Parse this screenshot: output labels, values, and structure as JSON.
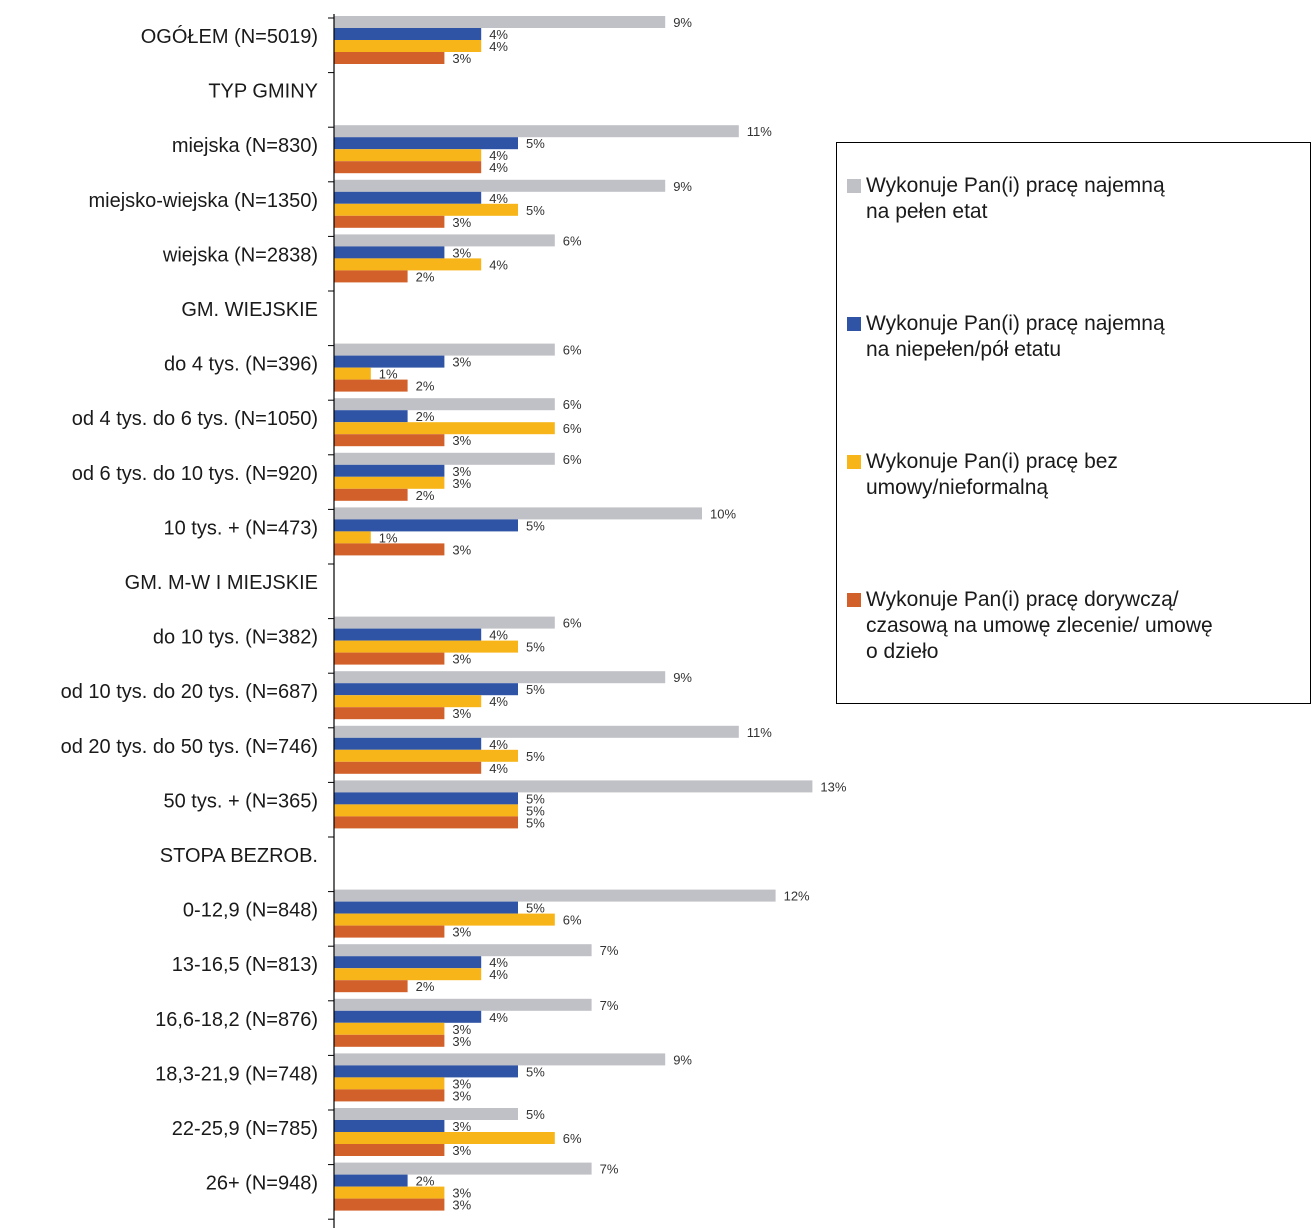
{
  "chart_data": {
    "type": "bar",
    "orientation": "horizontal",
    "categories": [
      "OGÓŁEM  (N=5019)",
      "TYP GMINY",
      "miejska (N=830)",
      "miejsko-wiejska (N=1350)",
      "wiejska (N=2838)",
      "GM. WIEJSKIE",
      "do 4 tys. (N=396)",
      "od 4 tys. do 6 tys. (N=1050)",
      "od 6 tys. do 10 tys. (N=920)",
      "10 tys. + (N=473)",
      "GM. M-W I MIEJSKIE",
      "do 10 tys. (N=382)",
      "od 10 tys. do 20 tys. (N=687)",
      "od 20 tys. do 50 tys. (N=746)",
      "50 tys. + (N=365)",
      "STOPA BEZROB.",
      "0-12,9 (N=848)",
      "13-16,5 (N=813)",
      "16,6-18,2 (N=876)",
      "18,3-21,9 (N=748)",
      "22-25,9 (N=785)",
      "26+ (N=948)"
    ],
    "series": [
      {
        "name": "Wykonuje Pan(i) pracę najemną\n na pełen etat",
        "color": "#c0c1c6",
        "values": [
          9,
          null,
          11,
          9,
          6,
          null,
          6,
          6,
          6,
          10,
          null,
          6,
          9,
          11,
          13,
          null,
          12,
          7,
          7,
          9,
          5,
          7
        ]
      },
      {
        "name": "Wykonuje Pan(i) pracę najemną\nna niepełen/pół etatu",
        "color": "#2f54a5",
        "values": [
          4,
          null,
          5,
          4,
          3,
          null,
          3,
          2,
          3,
          5,
          null,
          4,
          5,
          4,
          5,
          null,
          5,
          4,
          4,
          5,
          3,
          2
        ]
      },
      {
        "name": "Wykonuje Pan(i) pracę bez\numowy/nieformalną",
        "color": "#f7b519",
        "values": [
          4,
          null,
          4,
          5,
          4,
          null,
          1,
          6,
          3,
          1,
          null,
          5,
          4,
          5,
          5,
          null,
          6,
          4,
          3,
          3,
          6,
          3
        ]
      },
      {
        "name": "Wykonuje Pan(i) pracę dorywczą/\nczasową na umowę zlecenie/ umowę\no dzieło",
        "color": "#d1602a",
        "values": [
          3,
          null,
          4,
          3,
          2,
          null,
          2,
          3,
          2,
          3,
          null,
          3,
          3,
          4,
          5,
          null,
          3,
          2,
          3,
          3,
          3,
          3
        ]
      }
    ],
    "value_suffix": "%",
    "xlim": [
      0,
      14
    ],
    "grid": false,
    "legend_position": "right"
  }
}
